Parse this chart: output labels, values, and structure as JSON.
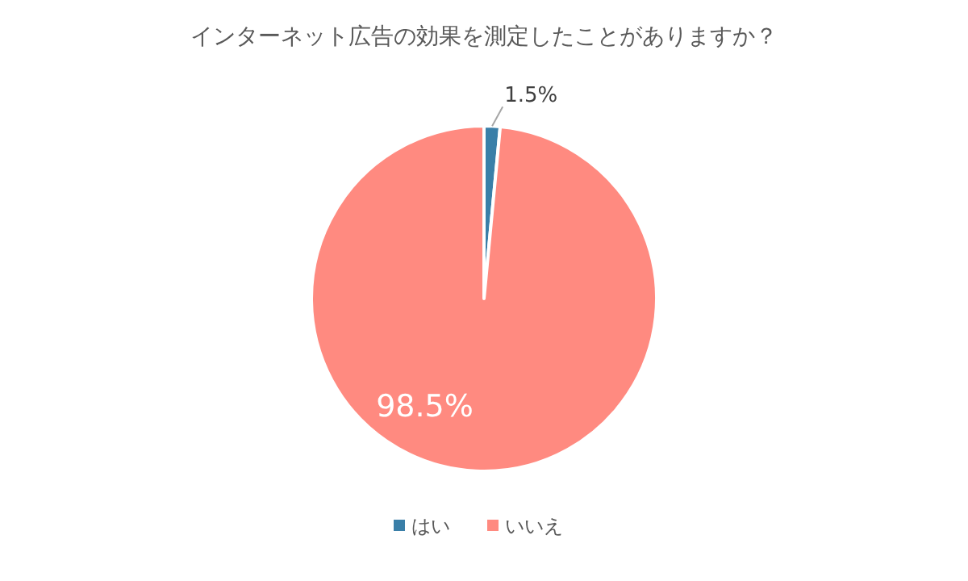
{
  "chart_data": {
    "type": "pie",
    "title": "インターネット広告の効果を測定したことがありますか？",
    "categories": [
      "はい",
      "いいえ"
    ],
    "values": [
      1.5,
      98.5
    ],
    "colors": [
      "#3a7fa8",
      "#ff8a80"
    ],
    "value_labels": [
      "1.5%",
      "98.5%"
    ],
    "legend": "bottom"
  }
}
